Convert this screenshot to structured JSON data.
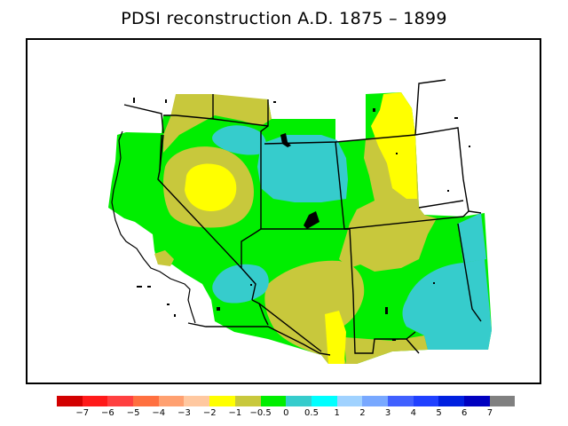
{
  "title": "PDSI reconstruction A.D. 1875 – 1899",
  "legend": {
    "colors": [
      "#d20000",
      "#ff1a1a",
      "#ff4040",
      "#ff7040",
      "#ffa070",
      "#ffc8a0",
      "#ffff00",
      "#c8c83c",
      "#00ee00",
      "#36cccc",
      "#00ffff",
      "#a0d2ff",
      "#78a8ff",
      "#4060ff",
      "#2040ff",
      "#0020e0",
      "#0000c0",
      "#808080"
    ],
    "labels": [
      "−7",
      "−6",
      "−5",
      "−4",
      "−3",
      "−2",
      "−1",
      "−0.5",
      "0",
      "0.5",
      "1",
      "2",
      "3",
      "4",
      "5",
      "6",
      "7"
    ]
  }
}
